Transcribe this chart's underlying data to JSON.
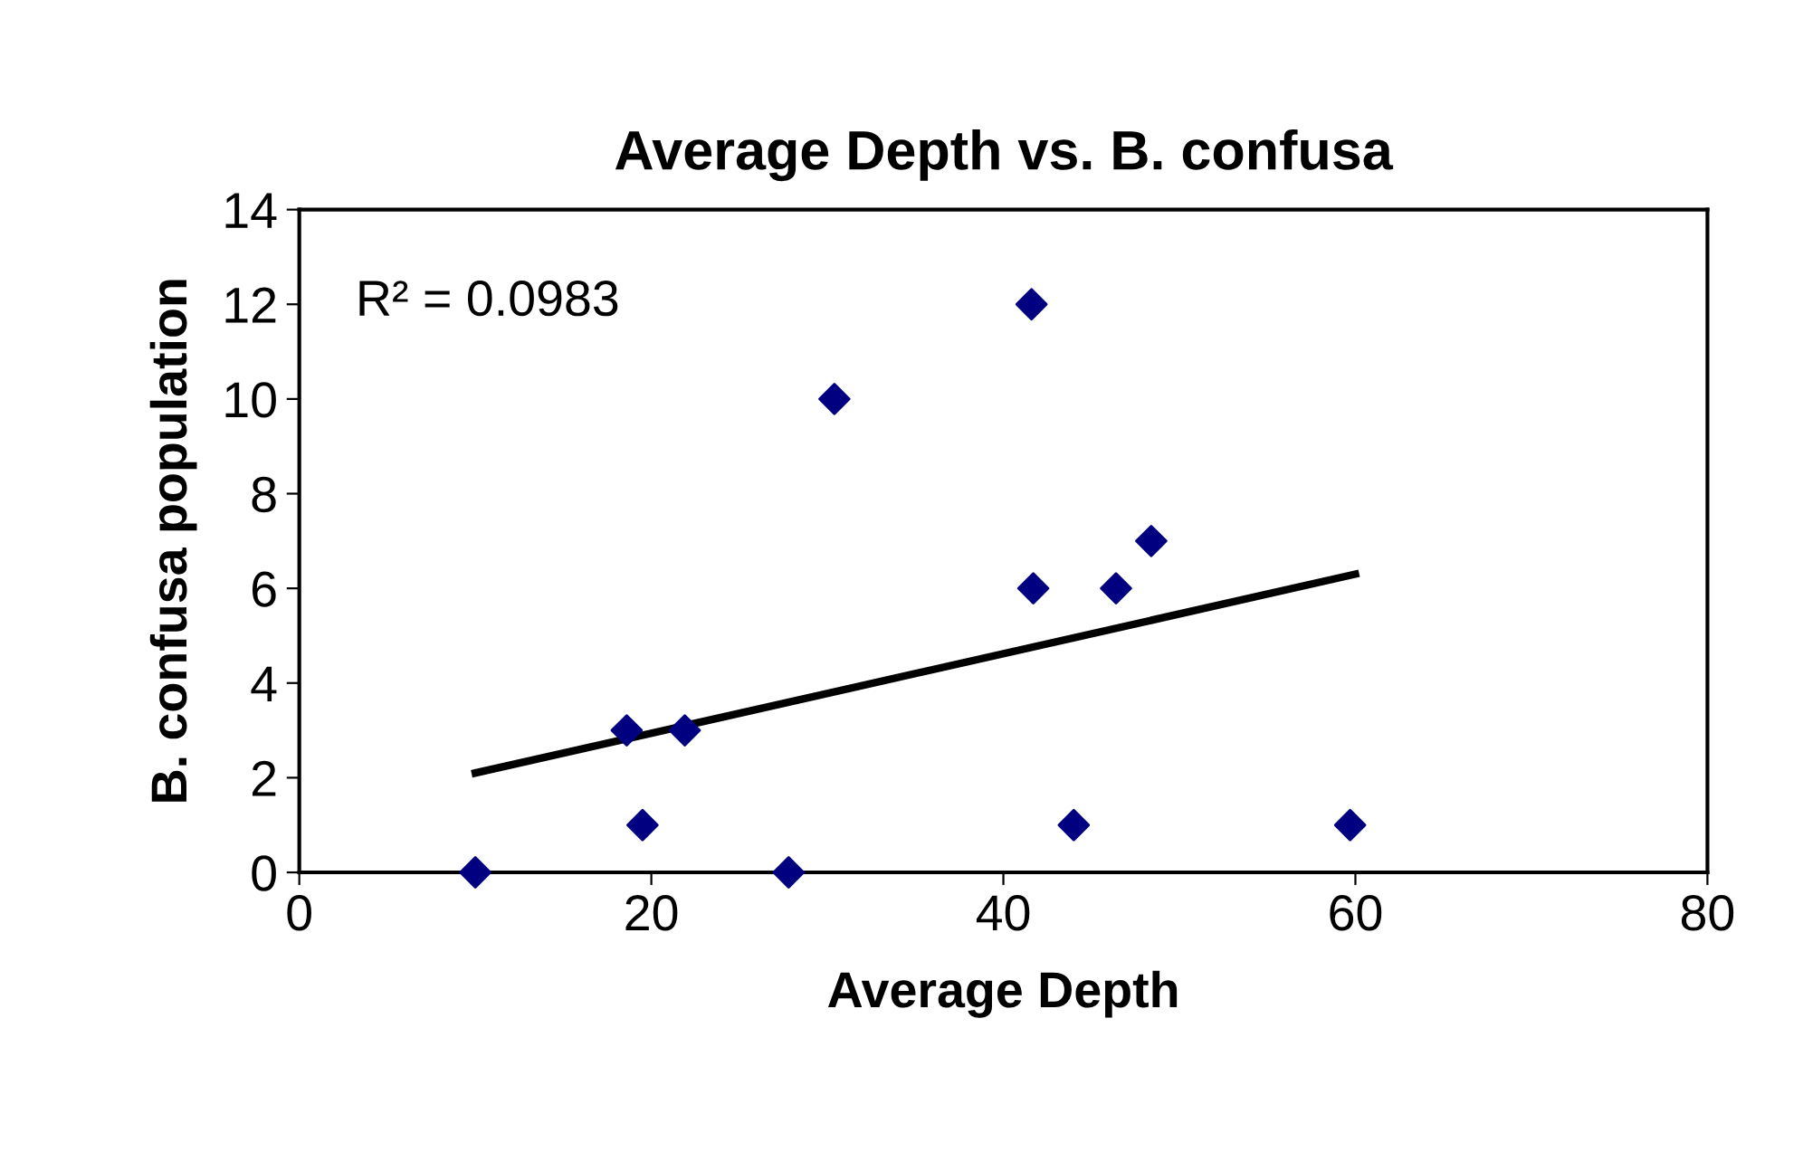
{
  "chart_data": {
    "type": "scatter",
    "title": "Average Depth vs. B. confusa",
    "xlabel": "Average Depth",
    "ylabel": "B. confusa population",
    "annotations": [
      {
        "text": "R² = 0.0983"
      }
    ],
    "series": [
      {
        "color": "#000080",
        "marker": "diamond",
        "x": [
          10,
          18.6,
          19.5,
          21.9,
          27.8,
          30.4,
          41.6,
          41.7,
          44.0,
          46.4,
          48.4,
          59.7
        ],
        "values": [
          0,
          3,
          1,
          3,
          0,
          10,
          12,
          6,
          1,
          6,
          7,
          1
        ]
      },
      {
        "type": "line",
        "color": "#000000",
        "x": [
          10,
          60
        ],
        "values": [
          2.1,
          6.3
        ]
      }
    ],
    "xlim": [
      0,
      80
    ],
    "xticks": [
      0,
      20,
      40,
      60,
      80
    ],
    "ylim": [
      0,
      14
    ],
    "yticks": [
      0,
      2,
      4,
      6,
      8,
      10,
      12,
      14
    ],
    "grid": false,
    "legend": false
  }
}
